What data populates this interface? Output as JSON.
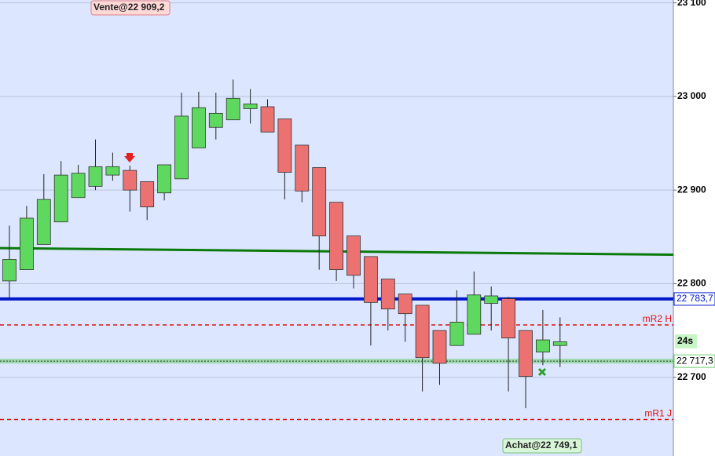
{
  "chart_data": {
    "type": "candlestick",
    "open": [
      22803,
      22815,
      22842,
      22866,
      22892,
      22904,
      22916,
      22921,
      22909,
      22897,
      22912,
      22945,
      22967,
      22975,
      22987,
      22989,
      22976,
      22948,
      22924,
      22887,
      22851,
      22829,
      22805,
      22789,
      22777,
      22750,
      22734,
      22746,
      22779,
      22784,
      22750,
      22727,
      22734
    ],
    "high": [
      22862,
      22883,
      22917,
      22931,
      22927,
      22954,
      22940,
      22926,
      22909,
      22927,
      23004,
      23005,
      23004,
      23018,
      23008,
      22997,
      22976,
      22948,
      22924,
      22887,
      22851,
      22829,
      22805,
      22789,
      22777,
      22750,
      22793,
      22813,
      22797,
      22786,
      22750,
      22772,
      22764
    ],
    "low": [
      22784,
      22815,
      22842,
      22866,
      22892,
      22900,
      22910,
      22877,
      22868,
      22889,
      22912,
      22945,
      22954,
      22975,
      22971,
      22962,
      22890,
      22887,
      22815,
      22803,
      22795,
      22734,
      22750,
      22738,
      22685,
      22692,
      22734,
      22746,
      22750,
      22685,
      22667,
      22713,
      22711
    ],
    "close": [
      22826,
      22870,
      22890,
      22916,
      22918,
      22925,
      22925,
      22900,
      22882,
      22927,
      22979,
      22988,
      22982,
      22998,
      22992,
      22962,
      22919,
      22899,
      22851,
      22815,
      22809,
      22780,
      22773,
      22768,
      22721,
      22715,
      22759,
      22788,
      22787,
      22742,
      22701,
      22740,
      22738
    ],
    "up_color": "#5ed85e",
    "down_color": "#ec7272",
    "ylim": [
      22616,
      23103
    ],
    "yticks": [
      {
        "value": 22700,
        "label": "22 700"
      },
      {
        "value": 22800,
        "label": "22 800"
      },
      {
        "value": 22900,
        "label": "22 900"
      },
      {
        "value": 23000,
        "label": "23 000"
      },
      {
        "value": 23100,
        "label": "23 100"
      }
    ],
    "grid": true,
    "trendline": {
      "values": [
        22838,
        22831
      ],
      "color": "#0a7a0a"
    },
    "price_lines": [
      {
        "value": 22783.7,
        "value_label": "22 783,7",
        "color": "#0018c8"
      },
      {
        "value": 22717.3,
        "value_label": "22 717,3",
        "color": "#6fcf6f"
      }
    ],
    "levels": [
      {
        "name": "mR2 H",
        "value": 22756,
        "color": "#e01010"
      },
      {
        "name": "mR1 J",
        "value": 22655,
        "color": "#e01010"
      }
    ],
    "orders": [
      {
        "text": "Vente@22 909,2",
        "value": 22909.2
      },
      {
        "text": "Achat@22 749,1",
        "value": 22749.1
      }
    ],
    "timer": "24s"
  }
}
